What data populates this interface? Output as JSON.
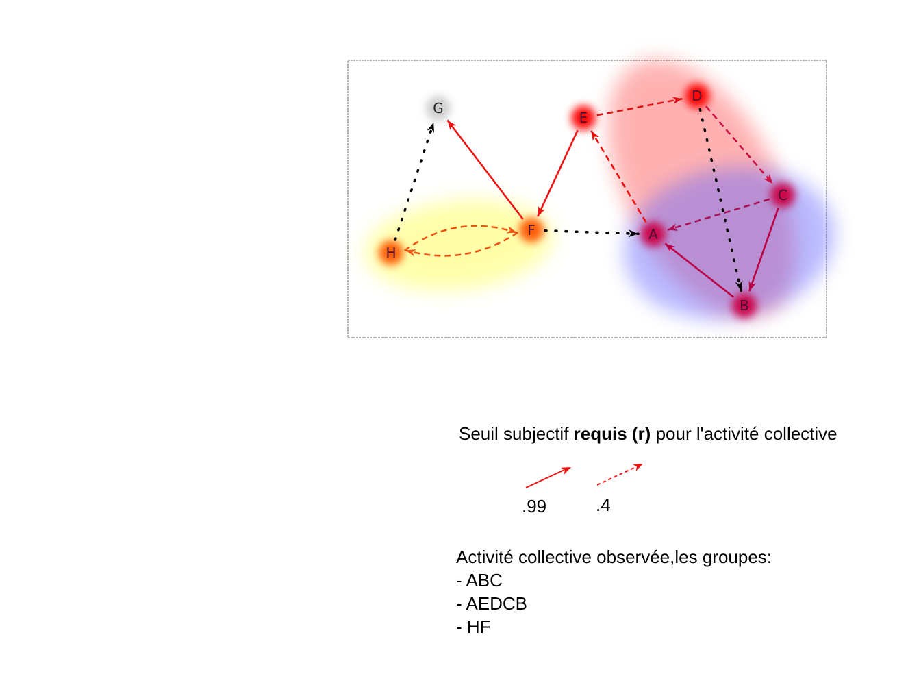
{
  "nodes": [
    {
      "id": "G",
      "label": "G",
      "color": "#cccccc"
    },
    {
      "id": "E",
      "label": "E",
      "color": "#ff0000"
    },
    {
      "id": "D",
      "label": "D",
      "color": "#ff0000"
    },
    {
      "id": "C",
      "label": "C",
      "color": "#cc0044"
    },
    {
      "id": "F",
      "label": "F",
      "color": "#ff5500"
    },
    {
      "id": "A",
      "label": "A",
      "color": "#cc0044"
    },
    {
      "id": "H",
      "label": "H",
      "color": "#ff5500"
    },
    {
      "id": "B",
      "label": "B",
      "color": "#cc0044"
    }
  ],
  "groups_visual": [
    {
      "members": "AEDCB",
      "color": "#ff6666"
    },
    {
      "members": "ABC",
      "color": "#6666ff"
    },
    {
      "members": "HF",
      "color": "#ffff66"
    }
  ],
  "edges": [
    {
      "from": "F",
      "to": "G",
      "style": "solid",
      "color": "#ee1111"
    },
    {
      "from": "E",
      "to": "F",
      "style": "solid",
      "color": "#ee1111"
    },
    {
      "from": "E",
      "to": "D",
      "style": "dashed",
      "color": "#dd1111"
    },
    {
      "from": "D",
      "to": "C",
      "style": "dashed",
      "color": "#cc1144"
    },
    {
      "from": "C",
      "to": "A",
      "style": "dashed",
      "color": "#aa1155"
    },
    {
      "from": "A",
      "to": "E",
      "style": "dashed",
      "color": "#ee1111"
    },
    {
      "from": "C",
      "to": "B",
      "style": "solid",
      "color": "#bb0044"
    },
    {
      "from": "B",
      "to": "A",
      "style": "solid",
      "color": "#bb0044"
    },
    {
      "from": "H",
      "to": "F",
      "style": "dashed",
      "color": "#ee5511"
    },
    {
      "from": "F",
      "to": "H",
      "style": "dashed",
      "color": "#ee5511"
    },
    {
      "from": "H",
      "to": "G",
      "style": "dotted",
      "color": "#000000"
    },
    {
      "from": "F",
      "to": "A",
      "style": "dotted",
      "color": "#000000"
    },
    {
      "from": "D",
      "to": "B",
      "style": "dotted",
      "color": "#000000"
    }
  ],
  "legend": {
    "title_prefix": "Seuil subjectif ",
    "title_bold": "requis (r)",
    "title_suffix": " pour l'activité collective",
    "solid_value": ".99",
    "dashed_value": ".4"
  },
  "observed": {
    "heading": "Activité collective observée,les groupes:",
    "items": [
      "- ABC",
      "- AEDCB",
      "- HF"
    ]
  }
}
